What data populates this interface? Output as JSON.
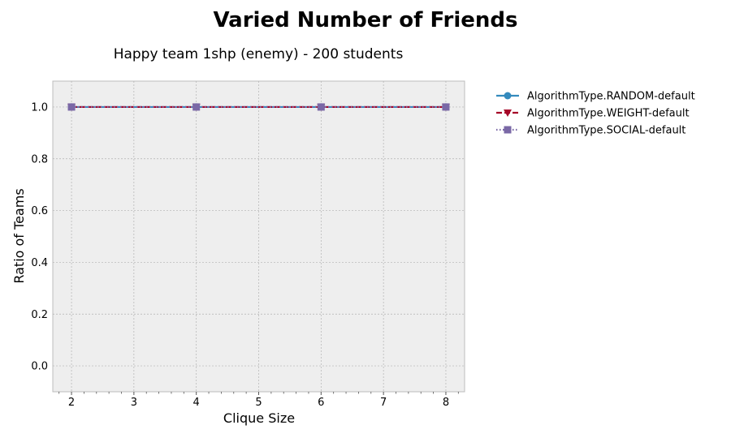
{
  "chart_data": {
    "type": "line",
    "title": "Varied Number of Friends",
    "subtitle": "Happy team 1shp (enemy) - 200 students",
    "xlabel": "Clique Size",
    "ylabel": "Ratio of Teams",
    "xlim": [
      1.7,
      8.3
    ],
    "ylim": [
      -0.1,
      1.1
    ],
    "xticks": [
      2,
      3,
      4,
      5,
      6,
      7,
      8
    ],
    "yticks": [
      0.0,
      0.2,
      0.4,
      0.6,
      0.8,
      1.0
    ],
    "ytick_labels": [
      "0.0",
      "0.2",
      "0.4",
      "0.6",
      "0.8",
      "1.0"
    ],
    "grid": true,
    "legend_position": "outside-right",
    "series": [
      {
        "name": "AlgorithmType.RANDOM-default",
        "x": [
          2,
          4,
          6,
          8
        ],
        "y": [
          1.0,
          1.0,
          1.0,
          1.0
        ],
        "color": "#348ABD",
        "marker": "circle",
        "linestyle": "solid"
      },
      {
        "name": "AlgorithmType.WEIGHT-default",
        "x": [
          2,
          4,
          6,
          8
        ],
        "y": [
          1.0,
          1.0,
          1.0,
          1.0
        ],
        "color": "#A60628",
        "marker": "triangle-down",
        "linestyle": "dashed"
      },
      {
        "name": "AlgorithmType.SOCIAL-default",
        "x": [
          2,
          4,
          6,
          8
        ],
        "y": [
          1.0,
          1.0,
          1.0,
          1.0
        ],
        "color": "#7A68A6",
        "marker": "square",
        "linestyle": "dotted"
      }
    ]
  }
}
